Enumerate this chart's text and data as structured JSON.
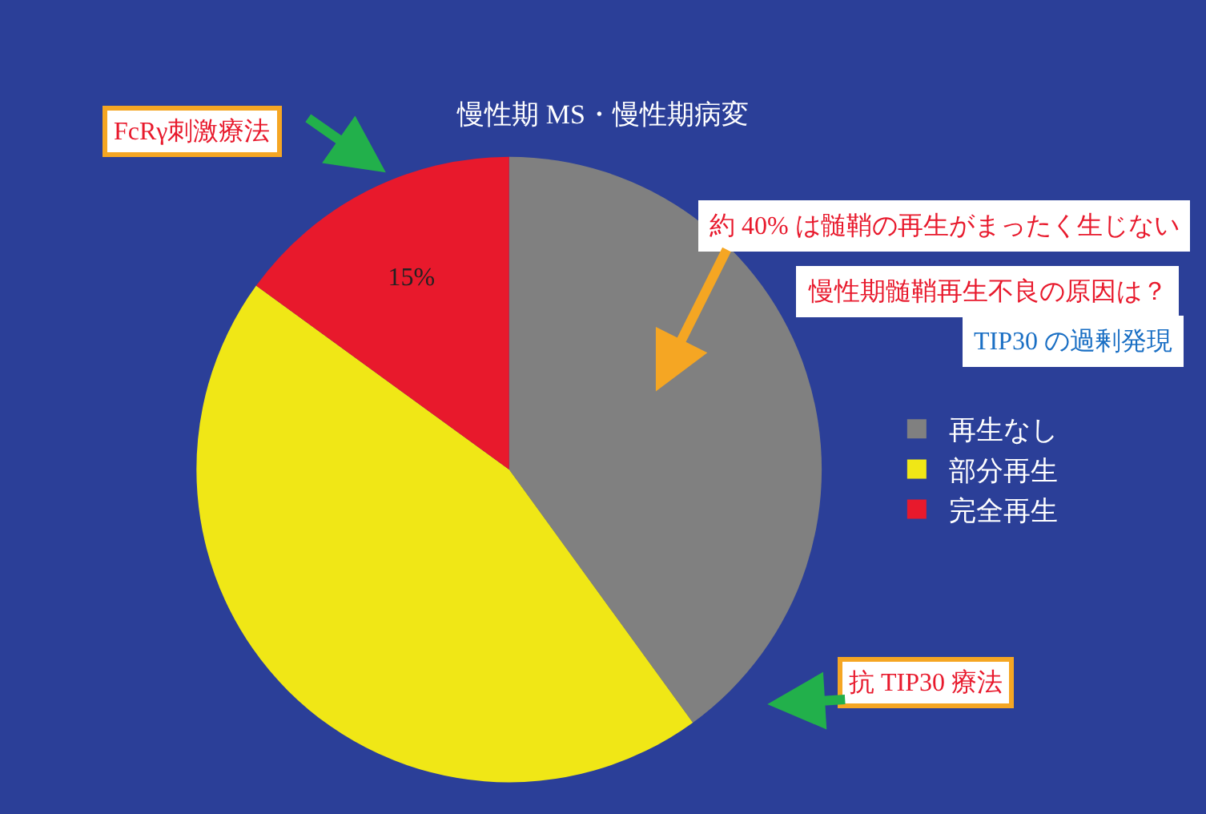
{
  "chart_data": {
    "type": "pie",
    "title": "慢性期 MS・慢性期病変",
    "categories": [
      "再生なし",
      "部分再生",
      "完全再生"
    ],
    "values": [
      40,
      45,
      15
    ],
    "colors": [
      "#808080",
      "#f0e716",
      "#e8192c"
    ],
    "value_labels": [
      null,
      null,
      "15%"
    ],
    "legend": "right",
    "annotations": [
      "FcRγ刺激療法",
      "約 40% は髄鞘の再生がまったく生じない",
      "慢性期髄鞘再生不良の原因は？",
      "TIP30 の過剰発現",
      "抗 TIP30 療法"
    ]
  }
}
